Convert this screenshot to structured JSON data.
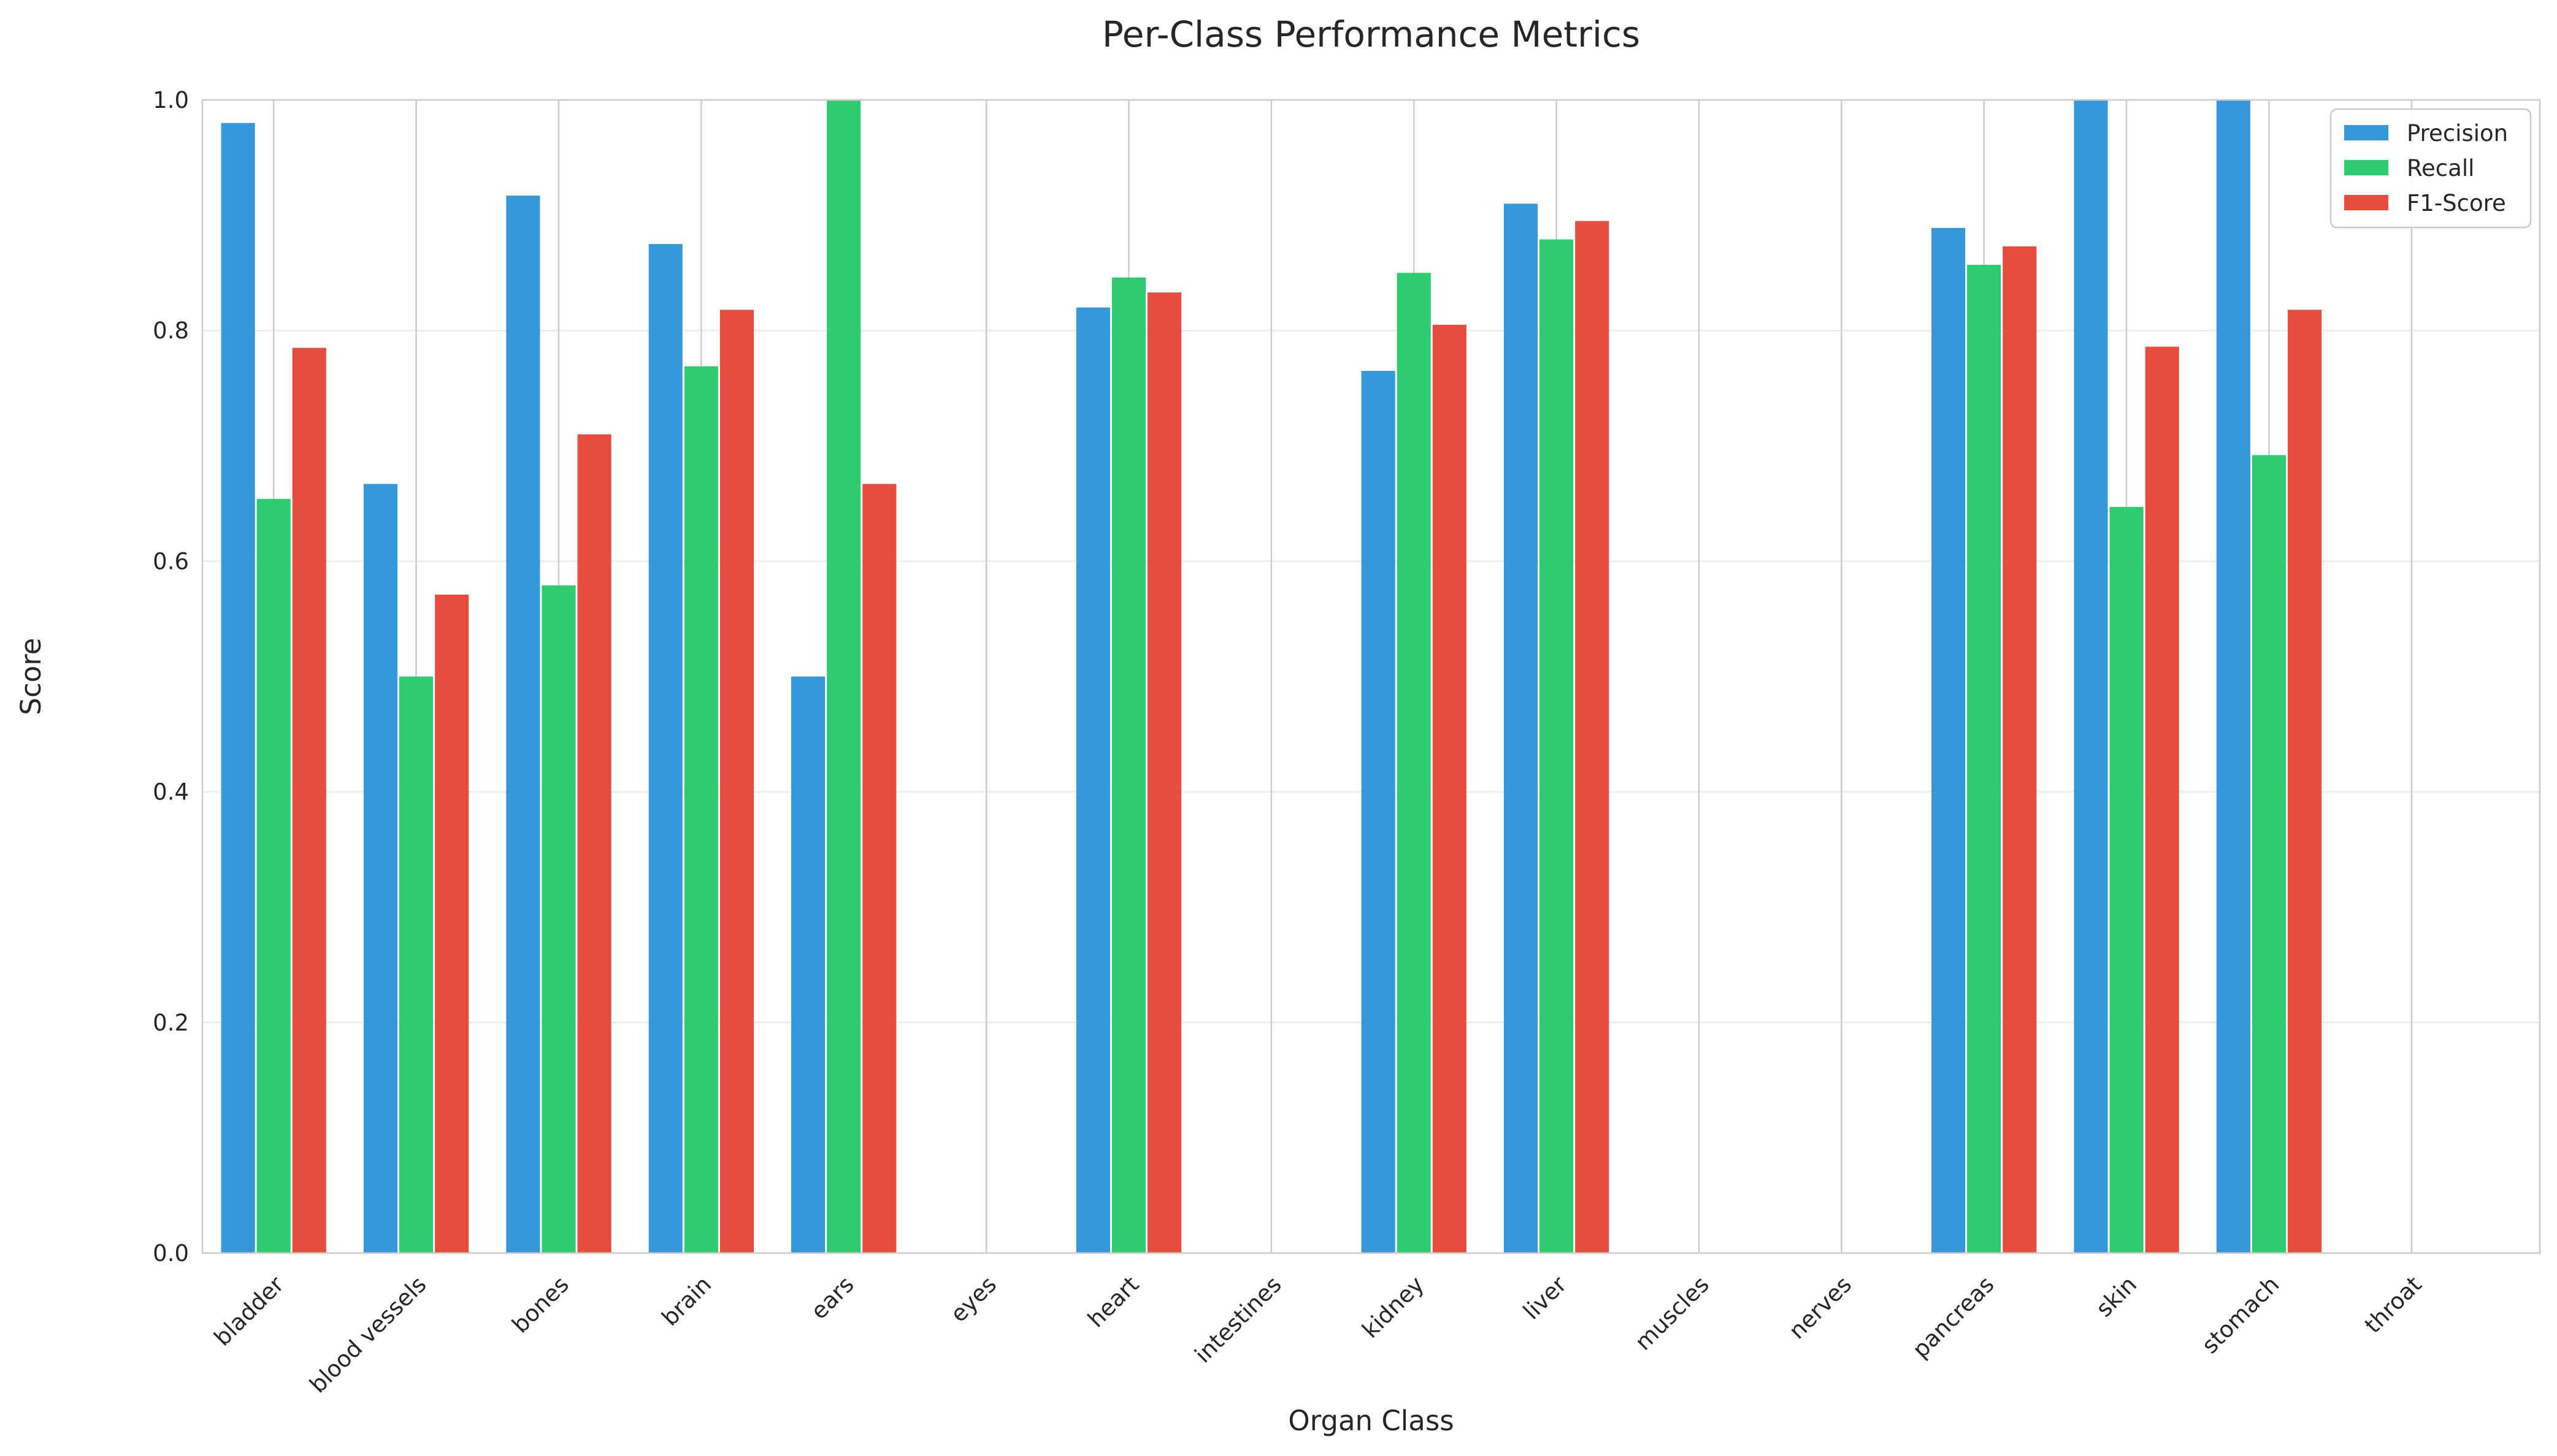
{
  "chart_data": {
    "type": "bar",
    "title": "Per-Class Performance Metrics",
    "xlabel": "Organ Class",
    "ylabel": "Score",
    "ylim": [
      0,
      1.0
    ],
    "yticks": [
      0.0,
      0.2,
      0.4,
      0.6,
      0.8,
      1.0
    ],
    "ytick_labels": [
      "0.0",
      "0.2",
      "0.4",
      "0.6",
      "0.8",
      "1.0"
    ],
    "grid": true,
    "legend_position": "top-right",
    "categories": [
      "bladder",
      "blood vessels",
      "bones",
      "brain",
      "ears",
      "eyes",
      "heart",
      "intestines",
      "kidney",
      "liver",
      "muscles",
      "nerves",
      "pancreas",
      "skin",
      "stomach",
      "throat"
    ],
    "series": [
      {
        "name": "Precision",
        "color": "#3498db",
        "values": [
          0.98,
          0.667,
          0.917,
          0.875,
          0.5,
          0.0,
          0.82,
          0.0,
          0.765,
          0.91,
          0.0,
          0.0,
          0.889,
          1.0,
          1.0,
          0.0
        ]
      },
      {
        "name": "Recall",
        "color": "#2ecc71",
        "values": [
          0.654,
          0.5,
          0.579,
          0.769,
          1.0,
          0.0,
          0.846,
          0.0,
          0.85,
          0.879,
          0.0,
          0.0,
          0.857,
          0.647,
          0.692,
          0.0
        ]
      },
      {
        "name": "F1-Score",
        "color": "#e74c3c",
        "values": [
          0.785,
          0.571,
          0.71,
          0.818,
          0.667,
          0.0,
          0.833,
          0.0,
          0.805,
          0.895,
          0.0,
          0.0,
          0.873,
          0.786,
          0.818,
          0.0
        ]
      }
    ]
  }
}
